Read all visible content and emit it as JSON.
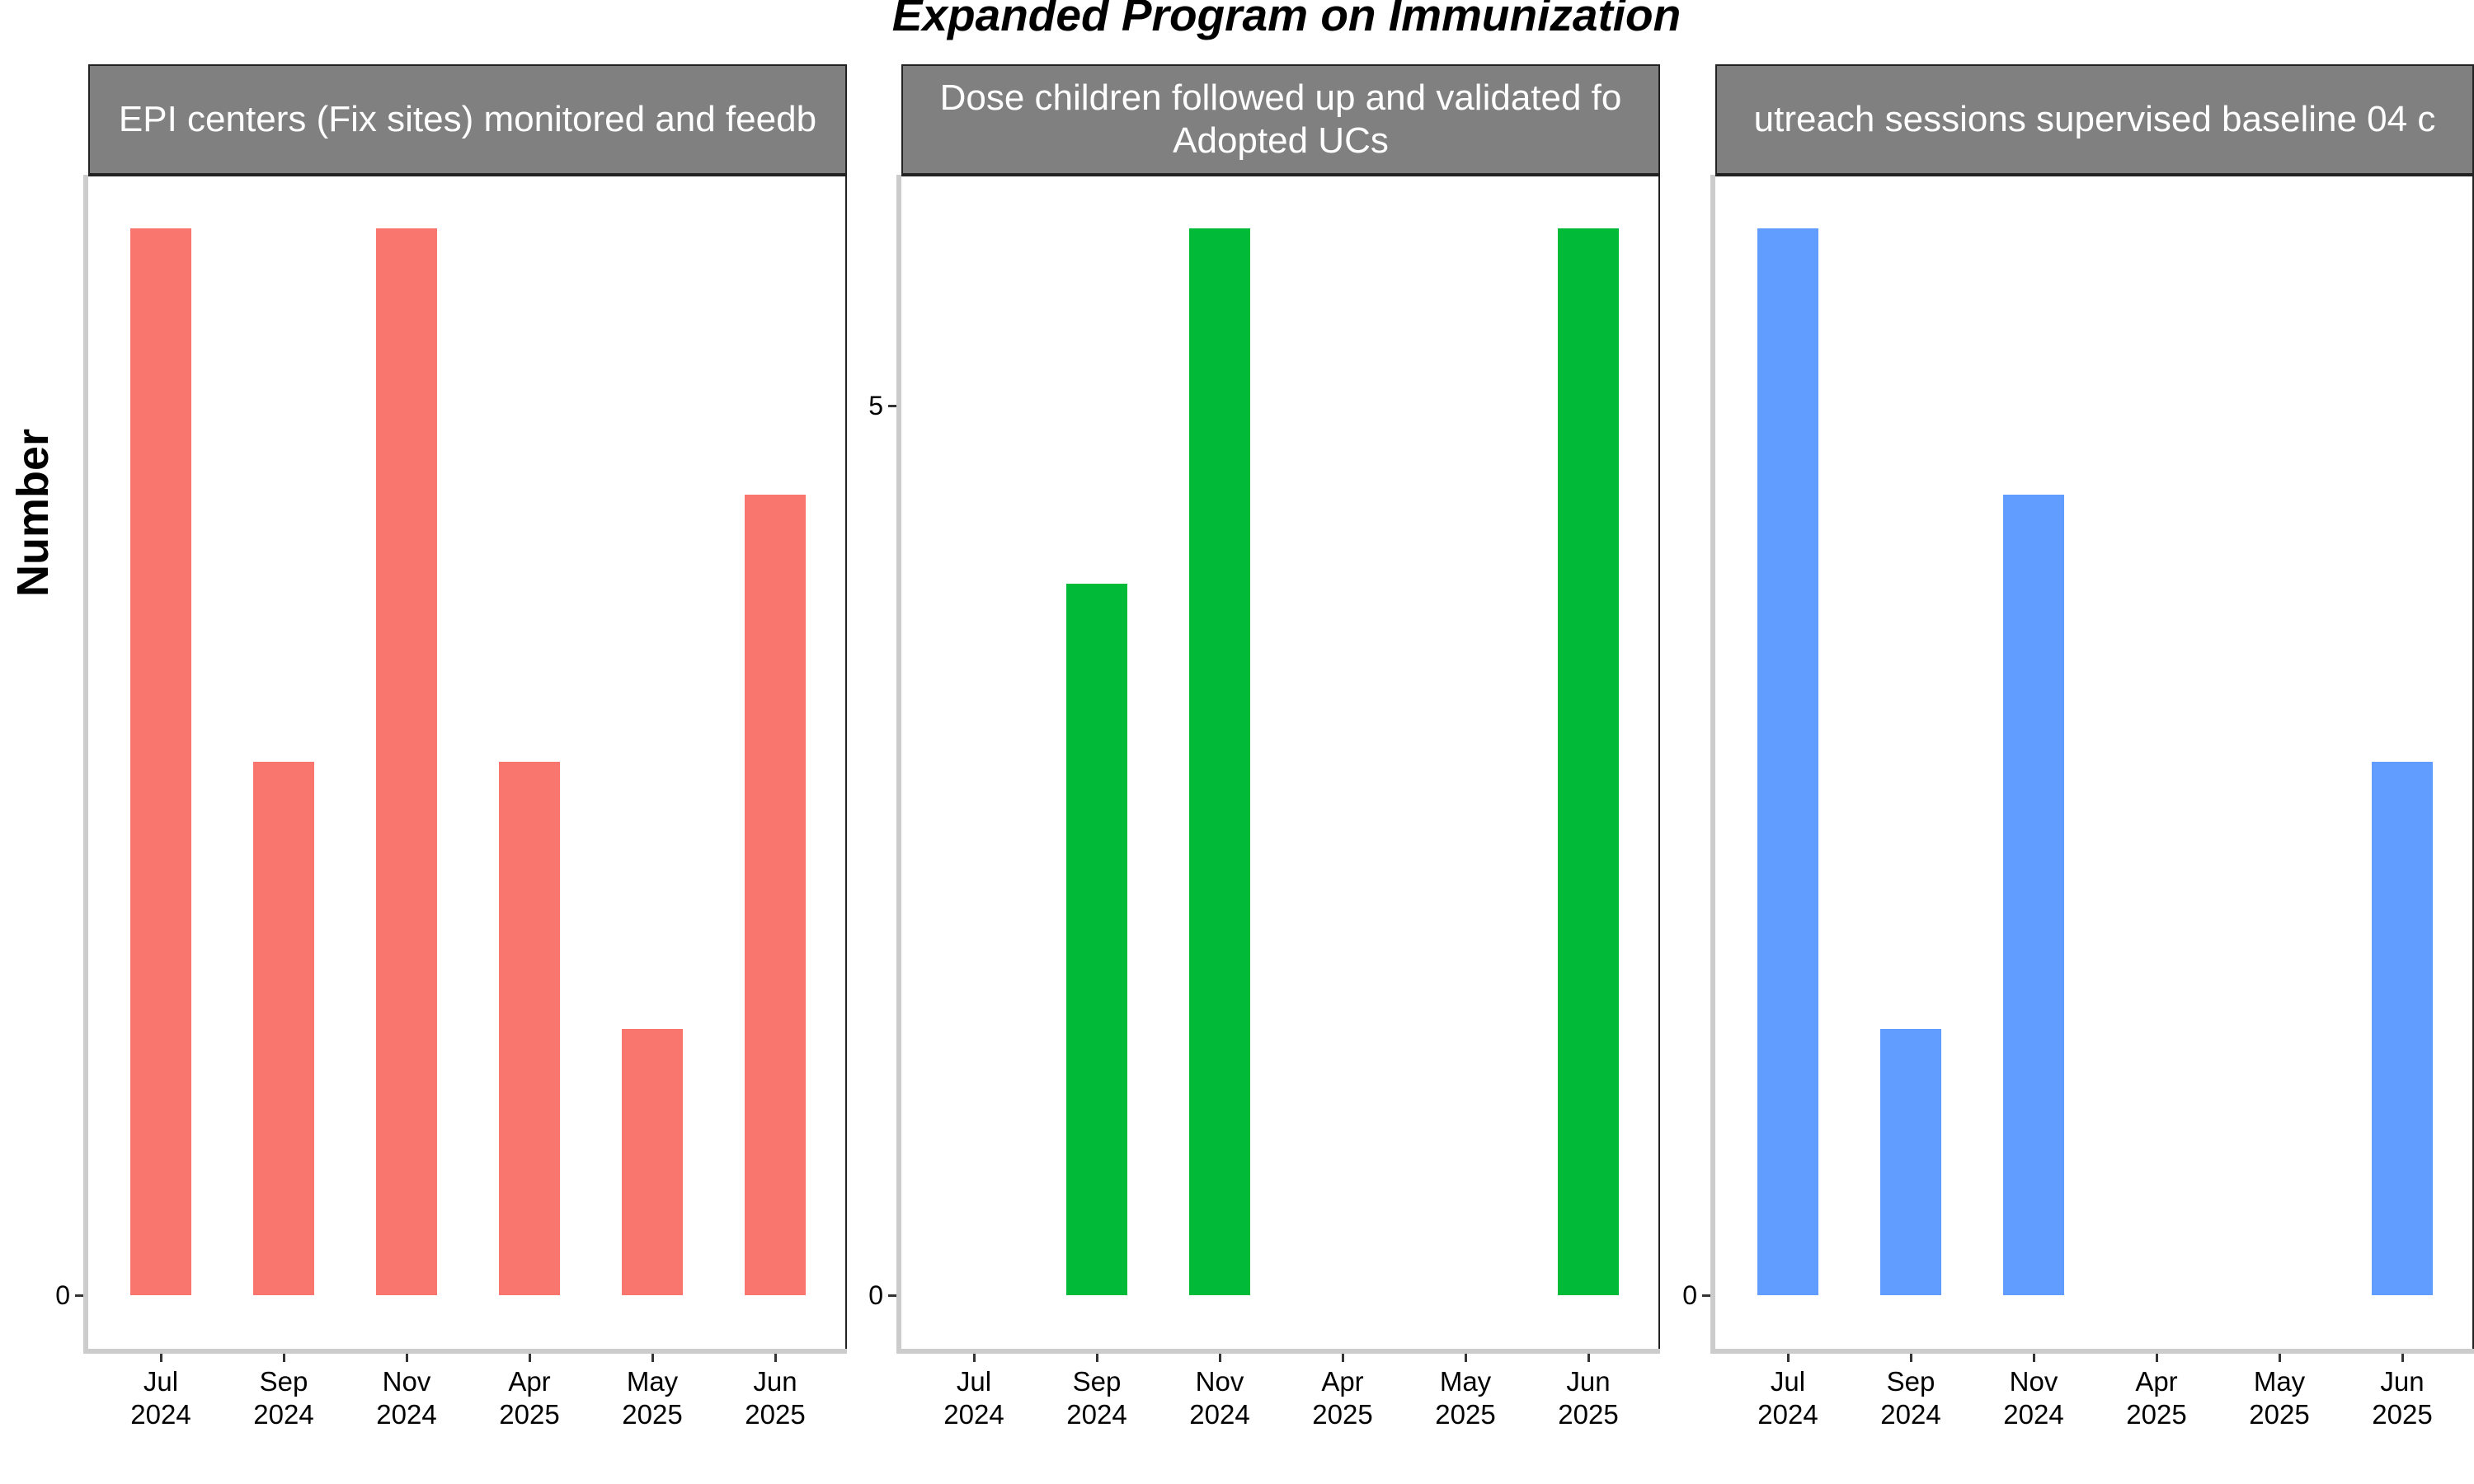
{
  "title": "Expanded Program on Immunization",
  "y_axis_title": "Number",
  "colors": {
    "bar_1": "#F8766D",
    "bar_2": "#00BA38",
    "bar_3": "#619CFF",
    "strip": "#808080"
  },
  "chart_data": [
    {
      "type": "bar",
      "facet_label": "EPI centers (Fix sites) monitored and feedb",
      "categories": [
        "Jul\n2024",
        "Sep\n2024",
        "Nov\n2024",
        "Apr\n2025",
        "May\n2025",
        "Jun\n2025"
      ],
      "values": [
        6,
        3,
        6,
        3,
        1.5,
        4.5
      ],
      "y_ticks": [
        0
      ],
      "ylim": [
        -0.3,
        6.3
      ],
      "color": "#F8766D"
    },
    {
      "type": "bar",
      "facet_label": "Dose children followed up and validated fo\nAdopted UCs",
      "categories": [
        "Jul\n2024",
        "Sep\n2024",
        "Nov\n2024",
        "Apr\n2025",
        "May\n2025",
        "Jun\n2025"
      ],
      "values": [
        0,
        4,
        6,
        0,
        0,
        6
      ],
      "y_ticks": [
        0,
        5
      ],
      "ylim": [
        -0.3,
        6.3
      ],
      "color": "#00BA38"
    },
    {
      "type": "bar",
      "facet_label": "utreach sessions supervised baseline 04 c",
      "categories": [
        "Jul\n2024",
        "Sep\n2024",
        "Nov\n2024",
        "Apr\n2025",
        "May\n2025",
        "Jun\n2025"
      ],
      "values": [
        6,
        1.5,
        4.5,
        0,
        0,
        3
      ],
      "y_ticks": [
        0
      ],
      "ylim": [
        -0.3,
        6.3
      ],
      "color": "#619CFF"
    }
  ]
}
